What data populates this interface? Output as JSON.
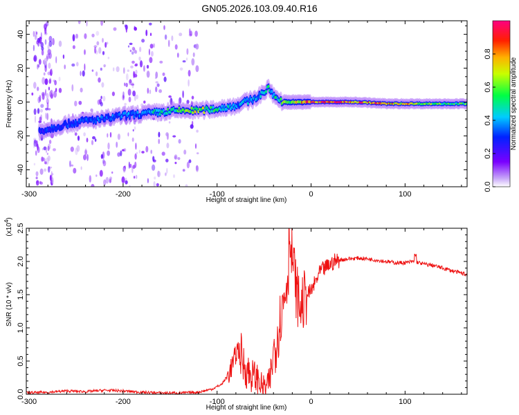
{
  "title": "GN05.2026.103.09.40.R16",
  "colors": {
    "snr_line": "#ee1111",
    "spectrogram_low": "#9a55f0",
    "spectrogram_mid": "#2244ff",
    "spectrogram_high": "#ff0000"
  },
  "chart_data": [
    {
      "type": "heatmap",
      "title": "GN05.2026.103.09.40.R16",
      "xlabel": "Height of straight line (km)",
      "ylabel": "Frequency (Hz)",
      "xlim": [
        -303,
        166
      ],
      "ylim": [
        -50,
        48
      ],
      "x_ticks": [
        -300,
        -200,
        -100,
        0,
        100
      ],
      "y_ticks": [
        -40,
        -20,
        0,
        20,
        40
      ],
      "colorbar": {
        "label": "Normalized spectral amplitude",
        "range": [
          0.0,
          1.0
        ],
        "ticks": [
          "0.0",
          "0.2",
          "0.4",
          "0.6",
          "0.8"
        ],
        "colormap": "rainbow (purple-blue-cyan-green-yellow-red-magenta)"
      },
      "ridge_x": [
        -300,
        -280,
        -260,
        -240,
        -220,
        -200,
        -180,
        -160,
        -140,
        -120,
        -100,
        -80,
        -60,
        -50,
        -45,
        -40,
        -30,
        -20,
        0,
        20,
        50,
        80,
        100,
        120,
        166
      ],
      "ridge_y": [
        -18,
        -16,
        -13,
        -11,
        -10,
        -8,
        -7,
        -6,
        -5,
        -5,
        -4,
        -2,
        2,
        6,
        8,
        4,
        0,
        0,
        0,
        0,
        0,
        -1,
        -1,
        -1,
        -1
      ],
      "ridge_amplitude": [
        0.2,
        0.3,
        0.3,
        0.35,
        0.35,
        0.35,
        0.4,
        0.5,
        0.6,
        0.7,
        0.5,
        0.4,
        0.45,
        0.4,
        0.5,
        0.45,
        0.6,
        0.7,
        0.9,
        0.95,
        0.9,
        0.8,
        0.8,
        0.6,
        0.6
      ]
    },
    {
      "type": "line",
      "xlabel": "Height of straight line (km)",
      "ylabel": "SNR (10 * v/v)",
      "y_scale_label": "(x10",
      "y_scale_exp": "4",
      "y_scale_close": ")",
      "xlim": [
        -303,
        166
      ],
      "ylim": [
        0,
        2.5
      ],
      "x_ticks": [
        -300,
        -200,
        -100,
        0,
        100
      ],
      "y_ticks": [
        "0.0",
        "0.5",
        "1.0",
        "1.5",
        "2.0",
        "2.5"
      ],
      "series": [
        {
          "x": [
            -303,
            -280,
            -260,
            -240,
            -220,
            -200,
            -180,
            -160,
            -140,
            -120,
            -105,
            -95,
            -88,
            -82,
            -78,
            -72,
            -65,
            -58,
            -52,
            -48,
            -44,
            -40,
            -36,
            -32,
            -28,
            -24,
            -20,
            -16,
            -12,
            -8,
            -4,
            0,
            5,
            10,
            15,
            20,
            25,
            30,
            40,
            50,
            60,
            70,
            80,
            90,
            100,
            110,
            120,
            130,
            140,
            150,
            166
          ],
          "y": [
            0.02,
            0.03,
            0.05,
            0.04,
            0.06,
            0.05,
            0.03,
            0.02,
            0.02,
            0.03,
            0.08,
            0.15,
            0.3,
            0.5,
            0.7,
            0.45,
            0.3,
            0.25,
            0.12,
            0.1,
            0.2,
            0.6,
            0.9,
            1.2,
            1.5,
            1.9,
            2.1,
            1.6,
            1.3,
            1.4,
            1.5,
            1.55,
            1.7,
            1.85,
            1.9,
            1.95,
            2.0,
            2.02,
            2.04,
            2.05,
            2.04,
            2.02,
            2.0,
            1.98,
            1.98,
            2.0,
            1.96,
            1.94,
            1.9,
            1.86,
            1.8
          ]
        }
      ]
    }
  ]
}
